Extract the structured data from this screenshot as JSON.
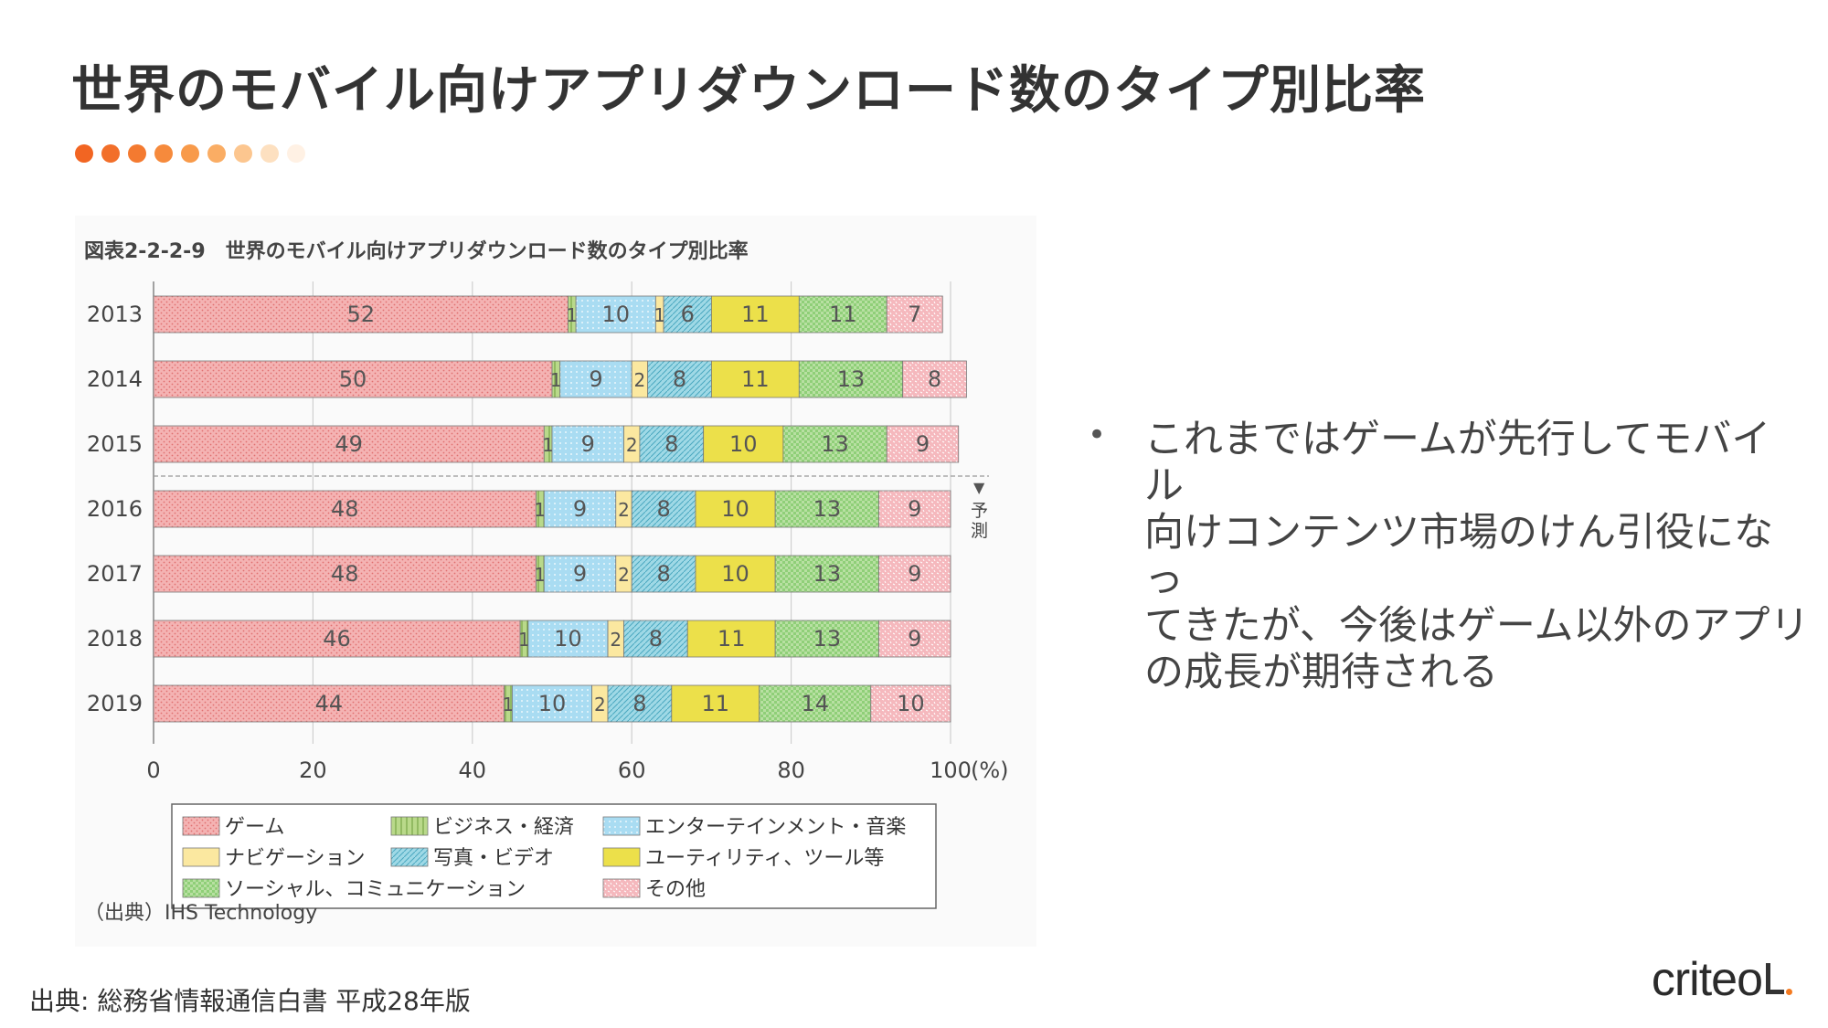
{
  "slide": {
    "title": "世界のモバイル向けアプリダウンロード数のタイプ別比率",
    "dot_colors": [
      "#f26522",
      "#f26f2a",
      "#f47a30",
      "#f68a3c",
      "#f89a4a",
      "#faad64",
      "#fcc68f",
      "#fde0c0",
      "#fff1e4"
    ],
    "bullet": "これまではゲームが先行してモバイル\n向けコンテンツ市場のけん引役になっ\nてきたが、今後はゲーム以外のアプリ\nの成長が期待される",
    "source": "出典: 総務省情報通信白書 平成28年版",
    "brand": "criteo"
  },
  "chart_data": {
    "type": "bar",
    "orientation": "horizontal",
    "stacked": true,
    "title": "図表2-2-2-9　世界のモバイル向けアプリダウンロード数のタイプ別比率",
    "categories": [
      "2013",
      "2014",
      "2015",
      "2016",
      "2017",
      "2018",
      "2019"
    ],
    "xlim": [
      0,
      100
    ],
    "x_ticks": [
      "0",
      "20",
      "40",
      "60",
      "80",
      "100"
    ],
    "x_unit": "(%)",
    "forecast_label": "予測",
    "forecast_start": "2016",
    "grid": true,
    "legend_position": "bottom",
    "series": [
      {
        "name": "ゲーム",
        "color": "#f4b3b3",
        "values": [
          52,
          50,
          49,
          48,
          48,
          46,
          44
        ]
      },
      {
        "name": "ビジネス・経済",
        "color": "#b9d98a",
        "values": [
          1,
          1,
          1,
          1,
          1,
          1,
          1
        ]
      },
      {
        "name": "エンターテインメント・音楽",
        "color": "#a9dcf2",
        "values": [
          10,
          9,
          9,
          9,
          9,
          10,
          10
        ]
      },
      {
        "name": "ナビゲーション",
        "color": "#fbe8a0",
        "values": [
          1,
          2,
          2,
          2,
          2,
          2,
          2
        ]
      },
      {
        "name": "写真・ビデオ",
        "color": "#9fd9e6",
        "values": [
          6,
          8,
          8,
          8,
          8,
          8,
          8
        ]
      },
      {
        "name": "ユーティリティ、ツール等",
        "color": "#ece04a",
        "values": [
          11,
          11,
          10,
          10,
          10,
          11,
          11
        ]
      },
      {
        "name": "ソーシャル、コミュニケーション",
        "color": "#b8e0a2",
        "values": [
          11,
          13,
          13,
          13,
          13,
          13,
          14
        ]
      },
      {
        "name": "その他",
        "color": "#f5b8bd",
        "values": [
          7,
          8,
          9,
          9,
          9,
          9,
          10
        ]
      }
    ],
    "legend_order": [
      0,
      1,
      2,
      3,
      4,
      5,
      6,
      7
    ],
    "source_note": "（出典）IHS Technology"
  }
}
